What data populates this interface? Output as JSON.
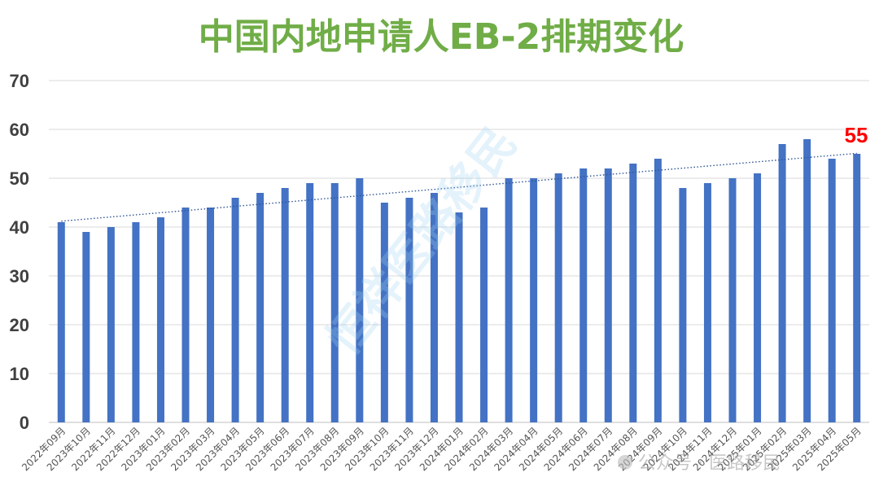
{
  "chart_data": {
    "type": "bar",
    "title": "中国内地申请人EB-2排期变化",
    "categories": [
      "2022年09月",
      "2023年10月",
      "2022年11月",
      "2022年12月",
      "2023年01月",
      "2023年02月",
      "2023年03月",
      "2023年04月",
      "2023年05月",
      "2023年06月",
      "2023年07月",
      "2023年08月",
      "2023年09月",
      "2023年10月",
      "2023年11月",
      "2023年12月",
      "2024年01月",
      "2024年02月",
      "2024年03月",
      "2024年04月",
      "2024年05月",
      "2024年06月",
      "2024年07月",
      "2024年08月",
      "2024年09月",
      "2024年10月",
      "2024年11月",
      "2024年12月",
      "2025年01月",
      "2025年02月",
      "2025年03月",
      "2025年04月",
      "2025年05月"
    ],
    "values": [
      41,
      39,
      40,
      41,
      42,
      44,
      44,
      46,
      47,
      48,
      49,
      49,
      50,
      45,
      46,
      47,
      43,
      44,
      50,
      50,
      51,
      52,
      52,
      53,
      54,
      48,
      49,
      50,
      51,
      57,
      58,
      54,
      55
    ],
    "ylim": [
      0,
      70
    ],
    "yticks": [
      0,
      10,
      20,
      30,
      40,
      50,
      60,
      70
    ],
    "grid": true,
    "trendline": {
      "type": "linear",
      "style": "dotted"
    },
    "last_value_label": "55",
    "colors": {
      "title": "#70ad47",
      "bar": "#4472c4",
      "trend": "#2f5597",
      "last_label": "#ff0000",
      "grid": "#d9d9d9"
    }
  },
  "watermarks": {
    "main": "恒祥医路移民",
    "footer_text": "公众号 · 医路移民"
  }
}
